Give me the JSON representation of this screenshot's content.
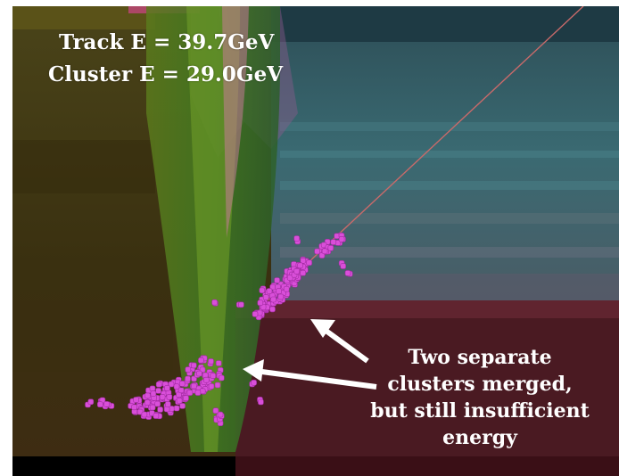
{
  "labels": {
    "track_energy": "Track E = 39.7GeV",
    "cluster_energy": "Cluster E = 29.0GeV"
  },
  "annotation": {
    "lines": [
      "Two separate",
      "clusters merged,",
      "but still insufficient",
      "energy"
    ]
  },
  "colors": {
    "hit": "#d94fd9",
    "track": "#c96a6a",
    "arrow": "#ffffff",
    "background_left": "#4a3d14",
    "background_right": "#2f5d66",
    "background_lower_right": "#4a1a22"
  }
}
